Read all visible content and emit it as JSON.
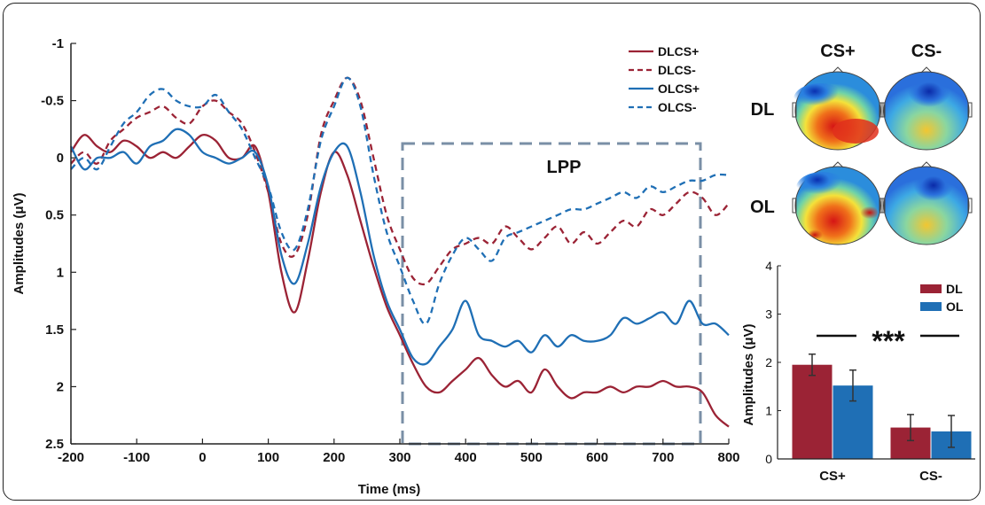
{
  "colors": {
    "dl": "#9b2335",
    "ol": "#1f6fb5",
    "axis": "#222222",
    "lpp_box": "#7a8fa6"
  },
  "chart_data": [
    {
      "type": "line",
      "xlabel": "Time (ms)",
      "ylabel": "Amplitudes (μV)",
      "xlim": [
        -200,
        800
      ],
      "ylim": [
        2.5,
        -1
      ],
      "y_reversed": true,
      "xticks": [
        "-200",
        "-100",
        "0",
        "100",
        "200",
        "300",
        "400",
        "500",
        "600",
        "700",
        "800"
      ],
      "yticks": [
        "-1",
        "-0.5",
        "0",
        "0.5",
        "1",
        "1.5",
        "2",
        "2.5"
      ],
      "legend_position": "top-right",
      "annotation": {
        "label": "LPP",
        "x_range": [
          300,
          750
        ],
        "y_range": [
          -0.1,
          2.45
        ]
      },
      "series": [
        {
          "name": "DLCS+",
          "style": "solid",
          "color": "dl",
          "x": [
            -200,
            -180,
            -160,
            -140,
            -120,
            -100,
            -80,
            -60,
            -40,
            -20,
            0,
            20,
            40,
            60,
            80,
            100,
            120,
            140,
            160,
            180,
            200,
            220,
            240,
            260,
            280,
            300,
            320,
            340,
            360,
            380,
            400,
            420,
            440,
            460,
            480,
            500,
            520,
            540,
            560,
            580,
            600,
            620,
            640,
            660,
            680,
            700,
            720,
            740,
            760,
            780,
            800
          ],
          "y": [
            -0.05,
            -0.2,
            -0.1,
            -0.05,
            -0.15,
            -0.1,
            0.0,
            -0.05,
            0.0,
            -0.1,
            -0.2,
            -0.15,
            0.0,
            0.0,
            -0.1,
            0.3,
            1.0,
            1.35,
            0.9,
            0.3,
            -0.05,
            0.15,
            0.55,
            0.95,
            1.3,
            1.55,
            1.8,
            2.0,
            2.05,
            1.95,
            1.85,
            1.75,
            1.9,
            2.0,
            1.95,
            2.05,
            1.85,
            2.0,
            2.1,
            2.05,
            2.05,
            2.0,
            2.05,
            2.0,
            2.0,
            1.95,
            2.0,
            2.0,
            2.05,
            2.25,
            2.35
          ]
        },
        {
          "name": "DLCS-",
          "style": "dashed",
          "color": "dl",
          "x": [
            -200,
            -180,
            -160,
            -140,
            -120,
            -100,
            -80,
            -60,
            -40,
            -20,
            0,
            20,
            40,
            60,
            80,
            100,
            120,
            140,
            160,
            180,
            200,
            220,
            240,
            260,
            280,
            300,
            320,
            340,
            360,
            380,
            400,
            420,
            440,
            460,
            480,
            500,
            520,
            540,
            560,
            580,
            600,
            620,
            640,
            660,
            680,
            700,
            720,
            740,
            760,
            780,
            800
          ],
          "y": [
            0.05,
            -0.05,
            0.05,
            -0.15,
            -0.25,
            -0.35,
            -0.4,
            -0.45,
            -0.35,
            -0.3,
            -0.45,
            -0.5,
            -0.4,
            -0.3,
            -0.05,
            0.3,
            0.75,
            0.85,
            0.5,
            -0.2,
            -0.5,
            -0.7,
            -0.5,
            0.0,
            0.5,
            0.8,
            1.05,
            1.1,
            0.95,
            0.8,
            0.75,
            0.7,
            0.75,
            0.6,
            0.7,
            0.8,
            0.7,
            0.6,
            0.75,
            0.65,
            0.75,
            0.65,
            0.55,
            0.6,
            0.45,
            0.5,
            0.4,
            0.3,
            0.35,
            0.5,
            0.4
          ]
        },
        {
          "name": "OLCS+",
          "style": "solid",
          "color": "ol",
          "x": [
            -200,
            -180,
            -160,
            -140,
            -120,
            -100,
            -80,
            -60,
            -40,
            -20,
            0,
            20,
            40,
            60,
            80,
            100,
            120,
            140,
            160,
            180,
            200,
            220,
            240,
            260,
            280,
            300,
            320,
            340,
            360,
            380,
            400,
            420,
            440,
            460,
            480,
            500,
            520,
            540,
            560,
            580,
            600,
            620,
            640,
            660,
            680,
            700,
            720,
            740,
            760,
            780,
            800
          ],
          "y": [
            -0.1,
            0.1,
            0.0,
            0.0,
            -0.05,
            0.05,
            -0.1,
            -0.15,
            -0.25,
            -0.2,
            -0.05,
            0.0,
            0.05,
            0.0,
            -0.05,
            0.25,
            0.85,
            1.1,
            0.75,
            0.25,
            -0.05,
            -0.1,
            0.3,
            0.85,
            1.25,
            1.5,
            1.75,
            1.8,
            1.65,
            1.5,
            1.25,
            1.55,
            1.6,
            1.65,
            1.6,
            1.7,
            1.55,
            1.65,
            1.55,
            1.6,
            1.6,
            1.55,
            1.4,
            1.45,
            1.4,
            1.35,
            1.45,
            1.25,
            1.45,
            1.45,
            1.55
          ]
        },
        {
          "name": "OLCS-",
          "style": "dashed",
          "color": "ol",
          "x": [
            -200,
            -180,
            -160,
            -140,
            -120,
            -100,
            -80,
            -60,
            -40,
            -20,
            0,
            20,
            40,
            60,
            80,
            100,
            120,
            140,
            160,
            180,
            200,
            220,
            240,
            260,
            280,
            300,
            320,
            340,
            360,
            380,
            400,
            420,
            440,
            460,
            480,
            500,
            520,
            540,
            560,
            580,
            600,
            620,
            640,
            660,
            680,
            700,
            720,
            740,
            760,
            780,
            800
          ],
          "y": [
            0.1,
            0.0,
            0.1,
            -0.1,
            -0.3,
            -0.4,
            -0.55,
            -0.6,
            -0.5,
            -0.45,
            -0.45,
            -0.55,
            -0.4,
            -0.25,
            0.0,
            0.25,
            0.65,
            0.8,
            0.45,
            -0.15,
            -0.45,
            -0.7,
            -0.45,
            0.15,
            0.65,
            0.95,
            1.25,
            1.45,
            1.1,
            0.85,
            0.7,
            0.8,
            0.9,
            0.7,
            0.65,
            0.6,
            0.55,
            0.5,
            0.45,
            0.45,
            0.4,
            0.35,
            0.3,
            0.35,
            0.25,
            0.3,
            0.25,
            0.2,
            0.2,
            0.15,
            0.15
          ]
        }
      ]
    },
    {
      "type": "bar",
      "categories": [
        "CS+",
        "CS-"
      ],
      "ylabel": "Amplitudes (μV)",
      "ylim": [
        0,
        4
      ],
      "yticks": [
        "0",
        "1",
        "2",
        "3",
        "4"
      ],
      "legend_position": "top-right",
      "significance": "***",
      "series": [
        {
          "name": "DL",
          "color": "dl",
          "values": [
            1.95,
            0.65
          ],
          "errors": [
            0.22,
            0.27
          ]
        },
        {
          "name": "OL",
          "color": "ol",
          "values": [
            1.52,
            0.57
          ],
          "errors": [
            0.32,
            0.33
          ]
        }
      ]
    }
  ],
  "topomaps": {
    "columns": [
      "CS+",
      "CS-"
    ],
    "rows": [
      "DL",
      "OL"
    ]
  }
}
